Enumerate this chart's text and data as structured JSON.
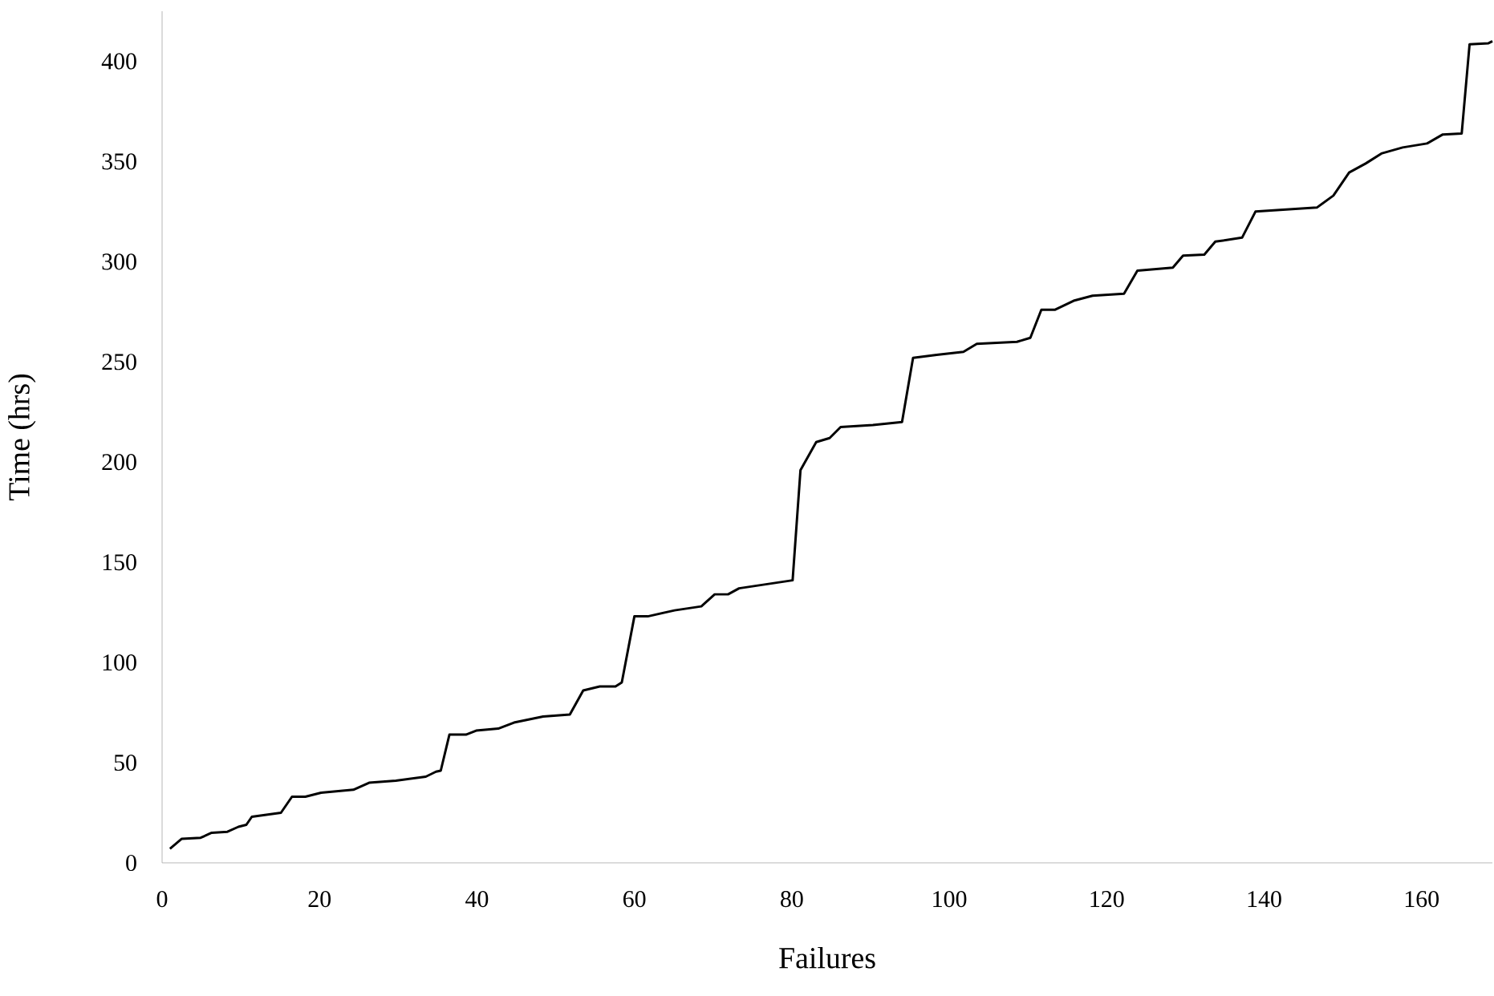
{
  "chart_data": {
    "type": "line",
    "xlabel": "Failures",
    "ylabel": "Time (hrs)",
    "xlim": [
      0,
      169
    ],
    "ylim": [
      0,
      425
    ],
    "xticks": [
      0,
      20,
      40,
      60,
      80,
      100,
      120,
      140,
      160
    ],
    "yticks": [
      0,
      50,
      100,
      150,
      200,
      250,
      300,
      350,
      400
    ],
    "marker": "none",
    "line_style": "solid",
    "series": [
      {
        "color": "#000000",
        "x": [
          1,
          2.5,
          4.9,
          6.3,
          8.3,
          9.7,
          10.7,
          11.4,
          15.1,
          16.5,
          18.2,
          20.2,
          24.3,
          26.3,
          29.7,
          33.5,
          34.8,
          35.4,
          36.5,
          38.6,
          39.9,
          42.7,
          44.7,
          48.4,
          51.8,
          53.5,
          55.6,
          57.6,
          58.4,
          60,
          61.7,
          65.1,
          68.5,
          70.2,
          71.9,
          73.3,
          80.1,
          81.1,
          83.1,
          84.8,
          86.2,
          90.3,
          94,
          95.4,
          98.4,
          101.8,
          103.5,
          108.6,
          110.3,
          111.7,
          113.4,
          115.8,
          118.2,
          122.2,
          123.9,
          128.4,
          129.7,
          132.4,
          133.8,
          137.2,
          138.9,
          146.7,
          148.8,
          150.8,
          152.9,
          154.9,
          157.6,
          160.7,
          162.7,
          165.1,
          166.1,
          168.5,
          169
        ],
        "values": [
          7,
          12,
          12.5,
          15,
          15.5,
          18,
          19,
          23,
          25,
          33,
          33,
          35,
          36.5,
          40,
          41,
          43,
          45.5,
          46,
          64,
          64,
          66,
          67,
          70,
          73,
          74,
          86,
          88,
          88,
          90,
          123,
          123,
          126,
          128,
          134,
          134,
          137,
          141,
          196,
          210,
          212,
          217.5,
          218.5,
          220,
          252,
          253.5,
          255,
          259,
          260,
          262,
          276,
          276,
          280.5,
          283,
          284,
          295.5,
          297,
          303,
          303.5,
          310,
          312,
          325,
          327,
          333,
          344.5,
          349,
          354,
          357,
          359,
          363.5,
          364,
          408.5,
          409,
          410
        ]
      }
    ]
  }
}
